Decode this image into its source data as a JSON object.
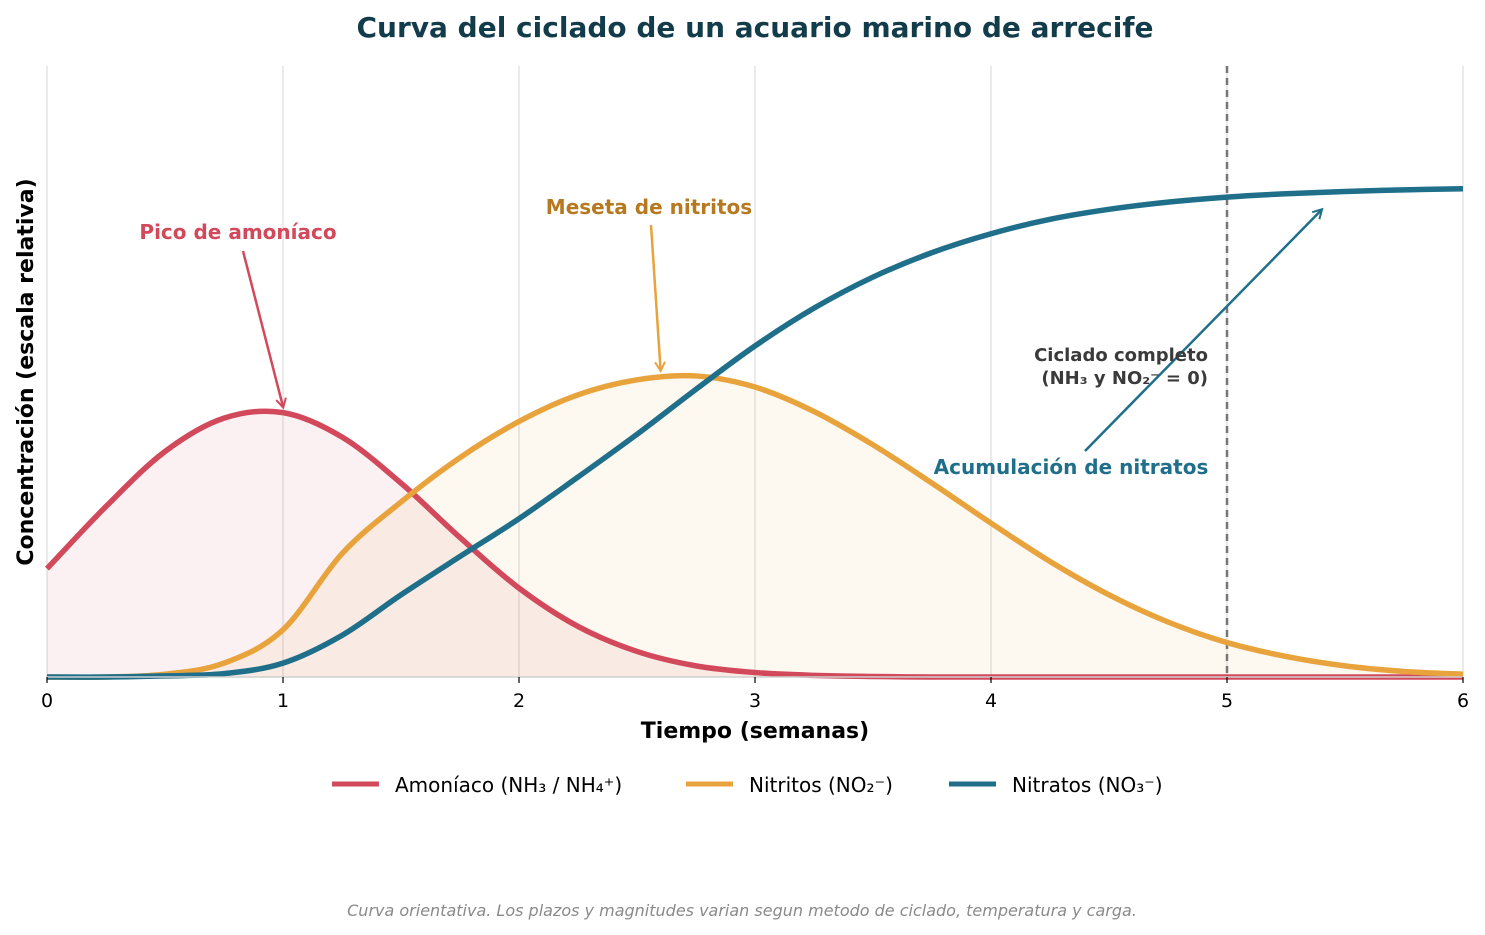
{
  "chart_data": {
    "type": "line",
    "title": "Curva del ciclado de un acuario marino de arrecife",
    "xlabel": "Tiempo (semanas)",
    "ylabel": "Concentración (escala relativa)",
    "xlim": [
      0,
      6
    ],
    "ylim": [
      0,
      1.1
    ],
    "x_ticks": [
      "0",
      "1",
      "2",
      "3",
      "4",
      "5",
      "6"
    ],
    "grid": "vertical",
    "legend_position": "bottom-center",
    "x": [
      0,
      0.25,
      0.5,
      0.75,
      1,
      1.25,
      1.5,
      1.75,
      2,
      2.25,
      2.5,
      2.75,
      3,
      3.25,
      3.5,
      3.75,
      4,
      4.25,
      4.5,
      4.75,
      5,
      5.25,
      5.5,
      5.75,
      6
    ],
    "series": [
      {
        "name": "Amoníaco (NH₃ / NH₄⁺)",
        "color": "#d1495b",
        "fill": true,
        "values": [
          0.195,
          0.307,
          0.406,
          0.466,
          0.476,
          0.432,
          0.349,
          0.251,
          0.16,
          0.091,
          0.046,
          0.02,
          0.008,
          0.003,
          0.001,
          0,
          0,
          0,
          0,
          0,
          0,
          0,
          0,
          0,
          0
        ]
      },
      {
        "name": "Nitritos (NO₂⁻)",
        "color": "#e8a33d",
        "fill": true,
        "values": [
          0,
          0,
          0.005,
          0.025,
          0.085,
          0.222,
          0.315,
          0.395,
          0.46,
          0.508,
          0.535,
          0.542,
          0.522,
          0.478,
          0.418,
          0.349,
          0.277,
          0.208,
          0.148,
          0.099,
          0.062,
          0.037,
          0.02,
          0.01,
          0.005
        ]
      },
      {
        "name": "Nitratos (NO₃⁻)",
        "color": "#1f6f8b",
        "fill": false,
        "values": [
          0,
          0,
          0.002,
          0.006,
          0.025,
          0.075,
          0.148,
          0.217,
          0.285,
          0.36,
          0.437,
          0.518,
          0.596,
          0.664,
          0.72,
          0.764,
          0.798,
          0.824,
          0.842,
          0.855,
          0.864,
          0.87,
          0.874,
          0.877,
          0.879
        ]
      }
    ],
    "vline": {
      "x": 5,
      "color": "#777777",
      "style": "dashed"
    },
    "annotations": [
      {
        "text": "Pico de amoníaco",
        "x": 1.0,
        "y": 0.476,
        "color": "#d1495b"
      },
      {
        "text": "Meseta de nitritos",
        "x": 2.6,
        "y": 0.542,
        "color": "#b7791f"
      },
      {
        "text": "Acumulación de nitratos",
        "x": 5.4,
        "y": 0.83,
        "color": "#1f6f8b"
      },
      {
        "lines": [
          "Ciclado completo",
          "(NH₃ y NO₂⁻ = 0)"
        ],
        "color": "#3a3a3a"
      }
    ],
    "footnote": "Curva orientativa. Los plazos y magnitudes varian segun metodo de ciclado, temperatura y carga."
  }
}
